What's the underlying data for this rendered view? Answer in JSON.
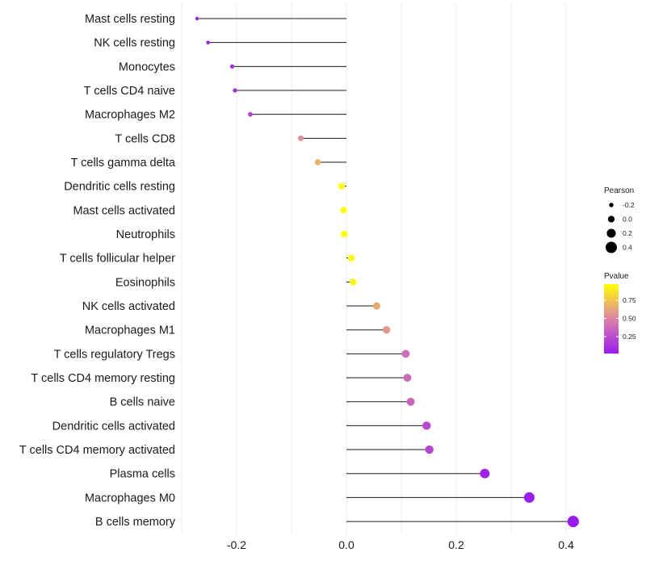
{
  "chart_data": {
    "type": "lollipop",
    "title": "",
    "xlabel": "",
    "ylabel": "",
    "xlim": [
      -0.3,
      0.43
    ],
    "x_ticks": [
      -0.2,
      0.0,
      0.2,
      0.4
    ],
    "x_tick_labels": [
      "-0.2",
      "0.0",
      "0.2",
      "0.4"
    ],
    "grid": true,
    "categories": [
      "Mast cells resting",
      "NK cells resting",
      "Monocytes",
      "T cells CD4 naive",
      "Macrophages M2",
      "T cells CD8",
      "T cells gamma delta",
      "Dendritic cells resting",
      "Mast cells activated",
      "Neutrophils",
      "T cells follicular helper",
      "Eosinophils",
      "NK cells activated",
      "Macrophages M1",
      "T cells regulatory  Tregs ",
      "T cells CD4 memory resting",
      "B cells naive",
      "Dendritic cells activated",
      "T cells CD4 memory activated",
      "Plasma cells",
      "Macrophages M0",
      "B cells memory"
    ],
    "pearson": [
      -0.272,
      -0.252,
      -0.208,
      -0.203,
      -0.175,
      -0.083,
      -0.052,
      -0.009,
      -0.005,
      -0.004,
      0.009,
      0.012,
      0.055,
      0.073,
      0.108,
      0.111,
      0.117,
      0.146,
      0.151,
      0.252,
      0.333,
      0.413
    ],
    "pvalue": [
      0.01,
      0.03,
      0.1,
      0.1,
      0.18,
      0.55,
      0.7,
      0.98,
      0.99,
      0.99,
      0.98,
      0.97,
      0.66,
      0.58,
      0.4,
      0.38,
      0.36,
      0.22,
      0.2,
      0.04,
      0.01,
      0.0
    ],
    "legend": {
      "size_title": "Pearson",
      "size_labels": [
        "-0.2",
        "0.0",
        "0.2",
        "0.4"
      ],
      "size_values": [
        -0.2,
        0.0,
        0.2,
        0.4
      ],
      "color_title": "Pvalue",
      "color_labels": [
        "0.75",
        "0.50",
        "0.25"
      ],
      "color_values": [
        0.75,
        0.5,
        0.25
      ],
      "color_range": [
        0.0,
        1.0
      ],
      "placement": "right"
    },
    "colors": {
      "low": "#9A1BF2",
      "mid": "#DE82A6",
      "high": "#FFFF00",
      "stem": "#1a1a1a",
      "grid": "#ebebeb"
    }
  }
}
